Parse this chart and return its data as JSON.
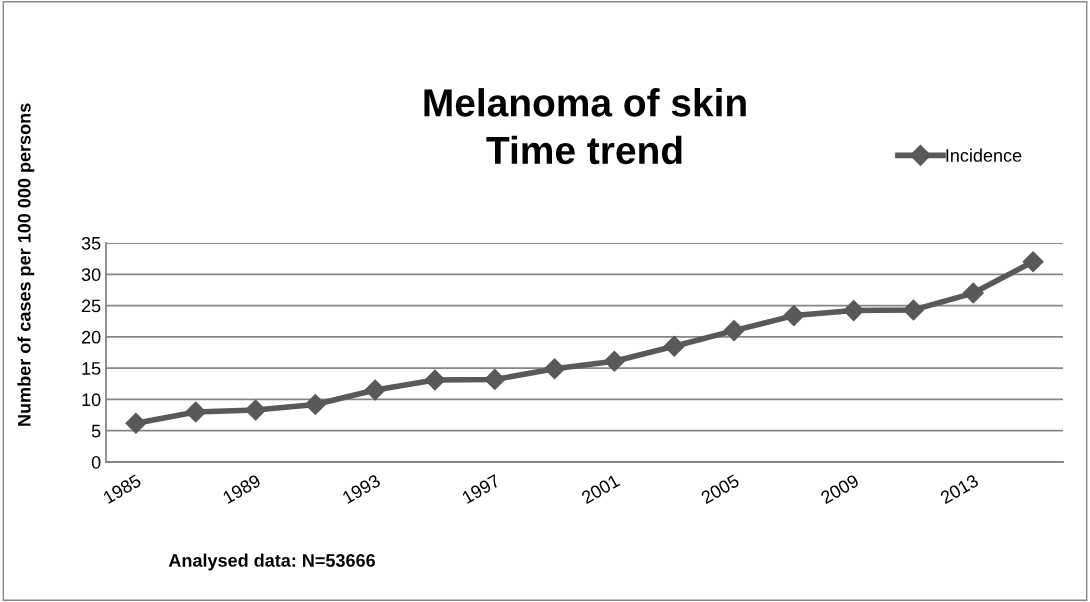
{
  "chart_data": {
    "type": "line",
    "title": "Melanoma of skin\nTime trend",
    "ylabel": "Number of cases per 100 000 persons",
    "categories": [
      "1985",
      null,
      "1989",
      null,
      "1993",
      null,
      "1997",
      null,
      "2001",
      null,
      "2005",
      null,
      "2009",
      null,
      "2013",
      null
    ],
    "series": [
      {
        "name": "Incidence",
        "color": "#595959",
        "values": [
          6.2,
          8.0,
          8.3,
          9.2,
          11.5,
          13.1,
          13.2,
          14.9,
          16.1,
          18.5,
          21.0,
          23.4,
          24.2,
          24.3,
          27.0,
          32.0
        ]
      }
    ],
    "ylim": [
      0,
      35
    ],
    "yticks": [
      0,
      5,
      10,
      15,
      20,
      25,
      30,
      35
    ],
    "grid": "y",
    "legend": "top right",
    "marker": "diamond",
    "line_style": "solid",
    "annotations": [
      "Analysed data: N=53666"
    ]
  }
}
